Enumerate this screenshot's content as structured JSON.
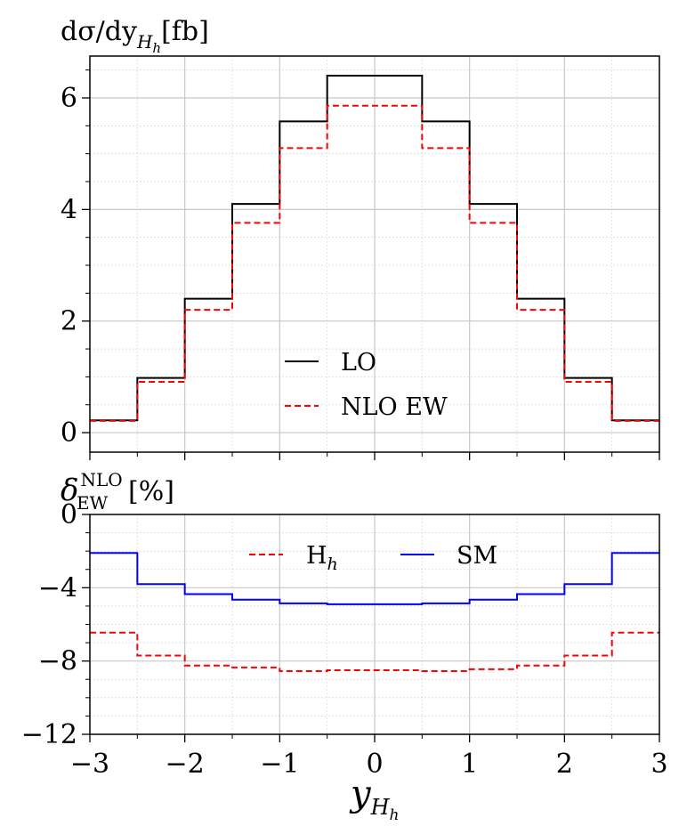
{
  "chart_data": [
    {
      "type": "line",
      "name": "differential-cross-section",
      "ylabel": "dσ/dy",
      "ylabel_sub": "H",
      "ylabel_subsub": "h",
      "ylabel_unit": "[fb]",
      "xlim": [
        -3,
        3
      ],
      "ylim": [
        -0.35,
        6.75
      ],
      "x_edges": [
        -3,
        -2.5,
        -2,
        -1.5,
        -1,
        -0.5,
        0.5,
        1,
        1.5,
        2,
        2.5,
        3
      ],
      "yticks": [
        0,
        2,
        4,
        6
      ],
      "ytick_labels": [
        "0",
        "2",
        "4",
        "6"
      ],
      "grid": true,
      "legend_position": "lower-center",
      "series": [
        {
          "name": "LO",
          "color": "#000000",
          "style": "solid",
          "values": [
            0.22,
            0.98,
            2.4,
            4.1,
            5.58,
            6.4,
            5.58,
            4.1,
            2.4,
            0.98,
            0.22
          ]
        },
        {
          "name": "NLO EW",
          "color": "#ff0000",
          "style": "dashed",
          "values": [
            0.21,
            0.91,
            2.2,
            3.76,
            5.1,
            5.86,
            5.1,
            3.76,
            2.2,
            0.91,
            0.21
          ]
        }
      ]
    },
    {
      "type": "line",
      "name": "relative-ew-correction",
      "ylabel": "δ",
      "ylabel_sub": "EW",
      "ylabel_sup": "NLO",
      "ylabel_unit": "[%]",
      "xlabel": "y",
      "xlabel_sub": "H",
      "xlabel_subsub": "h",
      "xlim": [
        -3,
        3
      ],
      "ylim": [
        -12,
        0
      ],
      "x_edges": [
        -3,
        -2.5,
        -2,
        -1.5,
        -1,
        -0.5,
        0,
        0.5,
        1,
        1.5,
        2,
        2.5,
        3
      ],
      "xticks": [
        -3,
        -2,
        -1,
        0,
        1,
        2,
        3
      ],
      "xtick_labels": [
        "−3",
        "−2",
        "−1",
        "0",
        "1",
        "2",
        "3"
      ],
      "yticks": [
        0,
        -4,
        -8,
        -12
      ],
      "ytick_labels": [
        "0",
        "−4",
        "−8",
        "−12"
      ],
      "grid": true,
      "legend_position": "upper-center",
      "series": [
        {
          "name": "H",
          "name_sub": "h",
          "color": "#ff0000",
          "style": "dashed",
          "values": [
            -6.45,
            -7.7,
            -8.25,
            -8.35,
            -8.55,
            -8.5,
            -8.5,
            -8.55,
            -8.45,
            -8.25,
            -7.7,
            -6.45
          ]
        },
        {
          "name": "SM",
          "color": "#0000ff",
          "style": "solid",
          "values": [
            -2.1,
            -3.8,
            -4.35,
            -4.65,
            -4.85,
            -4.9,
            -4.9,
            -4.85,
            -4.65,
            -4.35,
            -3.8,
            -2.1
          ]
        }
      ]
    }
  ]
}
